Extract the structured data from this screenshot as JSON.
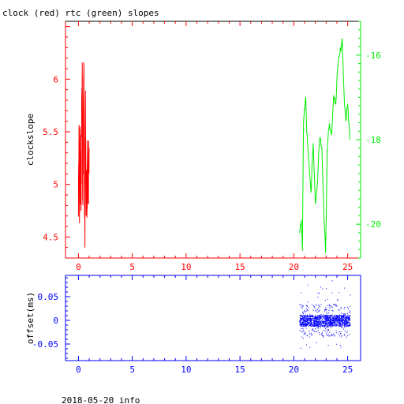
{
  "title": "clock (red) rtc (green) slopes",
  "footer": "2018-05-20 info",
  "colors": {
    "clock": "#ff0000",
    "rtc": "#00ee00",
    "offset": "#0000ff",
    "axis": "#000000"
  },
  "chart_data": [
    {
      "type": "line",
      "title": "clock (red) rtc (green) slopes",
      "xlim": [
        -1.2,
        26.2
      ],
      "x_ticks": [
        "0",
        "5",
        "10",
        "15",
        "20",
        "25"
      ],
      "y_left": {
        "label": "clockslope",
        "lim": [
          4.3,
          6.55
        ],
        "ticks": [
          "4.5",
          "5",
          "5.5",
          "6"
        ]
      },
      "y_right": {
        "label": "",
        "lim": [
          -20.8,
          -15.2
        ],
        "ticks": [
          "-16",
          "-18",
          "-20"
        ]
      },
      "grid": false,
      "series": [
        {
          "name": "clock",
          "axis": "left",
          "x_range": [
            0.0,
            1.0
          ],
          "y_range": [
            4.4,
            6.28
          ],
          "y_keypoints": [
            [
              0.0,
              4.7
            ],
            [
              0.05,
              5.4
            ],
            [
              0.1,
              4.55
            ],
            [
              0.15,
              5.6
            ],
            [
              0.2,
              5.0
            ],
            [
              0.25,
              4.9
            ],
            [
              0.3,
              5.5
            ],
            [
              0.35,
              6.1
            ],
            [
              0.4,
              4.85
            ],
            [
              0.45,
              5.3
            ],
            [
              0.5,
              6.28
            ],
            [
              0.55,
              5.2
            ],
            [
              0.6,
              4.5
            ],
            [
              0.65,
              5.8
            ],
            [
              0.7,
              4.9
            ],
            [
              0.75,
              5.05
            ],
            [
              0.8,
              4.85
            ],
            [
              0.85,
              5.4
            ],
            [
              0.9,
              4.8
            ],
            [
              0.95,
              5.2
            ],
            [
              1.0,
              5.1
            ]
          ]
        },
        {
          "name": "rtc",
          "axis": "right",
          "x_range": [
            20.5,
            25.2
          ],
          "keypoints": [
            [
              20.5,
              -20.2
            ],
            [
              20.7,
              -19.9
            ],
            [
              20.8,
              -20.6
            ],
            [
              20.9,
              -17.5
            ],
            [
              21.1,
              -17.0
            ],
            [
              21.2,
              -17.8
            ],
            [
              21.4,
              -18.5
            ],
            [
              21.6,
              -19.2
            ],
            [
              21.8,
              -18.0
            ],
            [
              22.0,
              -19.6
            ],
            [
              22.2,
              -19.0
            ],
            [
              22.4,
              -17.9
            ],
            [
              22.6,
              -18.2
            ],
            [
              22.8,
              -19.8
            ],
            [
              22.95,
              -20.7
            ],
            [
              23.1,
              -18.2
            ],
            [
              23.3,
              -17.6
            ],
            [
              23.5,
              -17.9
            ],
            [
              23.7,
              -17.0
            ],
            [
              23.9,
              -17.2
            ],
            [
              24.0,
              -16.5
            ],
            [
              24.2,
              -16.0
            ],
            [
              24.35,
              -15.9
            ],
            [
              24.5,
              -15.6
            ],
            [
              24.7,
              -17.2
            ],
            [
              24.85,
              -17.5
            ],
            [
              25.0,
              -17.1
            ],
            [
              25.2,
              -18.0
            ]
          ]
        }
      ]
    },
    {
      "type": "scatter",
      "xlim": [
        -1.2,
        26.2
      ],
      "x_ticks": [
        "0",
        "5",
        "10",
        "15",
        "20",
        "25"
      ],
      "y_left": {
        "label": "offset(ms)",
        "lim": [
          -0.085,
          0.095
        ],
        "ticks": [
          "0.05",
          "0",
          "-0.05"
        ]
      },
      "grid": false,
      "series": [
        {
          "name": "offset",
          "x_range": [
            20.5,
            25.2
          ],
          "y_spread": {
            "center": 0.0,
            "dense_band": [
              -0.012,
              0.012
            ],
            "outliers_range": [
              -0.06,
              0.085
            ]
          }
        }
      ]
    }
  ]
}
